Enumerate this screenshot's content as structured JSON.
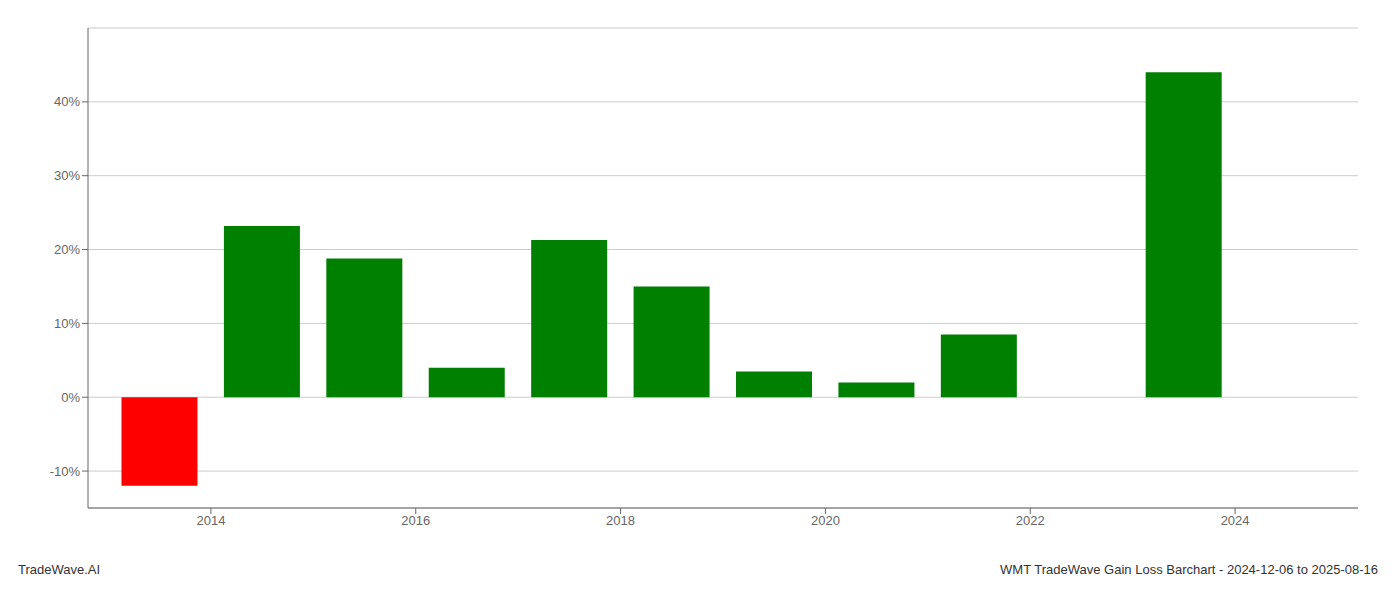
{
  "chart_data": {
    "type": "bar",
    "x": [
      2013.5,
      2014.5,
      2015.5,
      2016.5,
      2017.5,
      2018.5,
      2019.5,
      2020.5,
      2021.5,
      2023.5
    ],
    "values": [
      -12.0,
      23.2,
      18.8,
      4.0,
      21.3,
      15.0,
      3.5,
      2.0,
      8.5,
      44.0
    ],
    "colors": [
      "#ff0000",
      "#008000",
      "#008000",
      "#008000",
      "#008000",
      "#008000",
      "#008000",
      "#008000",
      "#008000",
      "#008000"
    ],
    "xlim": [
      2012.8,
      2025.2
    ],
    "xticks": [
      2014,
      2016,
      2018,
      2020,
      2022,
      2024
    ],
    "ylim": [
      -15,
      50
    ],
    "yticks": [
      {
        "value": -10,
        "label": "-10%"
      },
      {
        "value": 0,
        "label": "0%"
      },
      {
        "value": 10,
        "label": "10%"
      },
      {
        "value": 20,
        "label": "20%"
      },
      {
        "value": 30,
        "label": "30%"
      },
      {
        "value": 40,
        "label": "40%"
      }
    ],
    "grid": true,
    "annotations": [
      "TradeWave.AI",
      "WMT TradeWave Gain Loss Barchart - 2024-12-06 to 2025-08-16"
    ]
  }
}
